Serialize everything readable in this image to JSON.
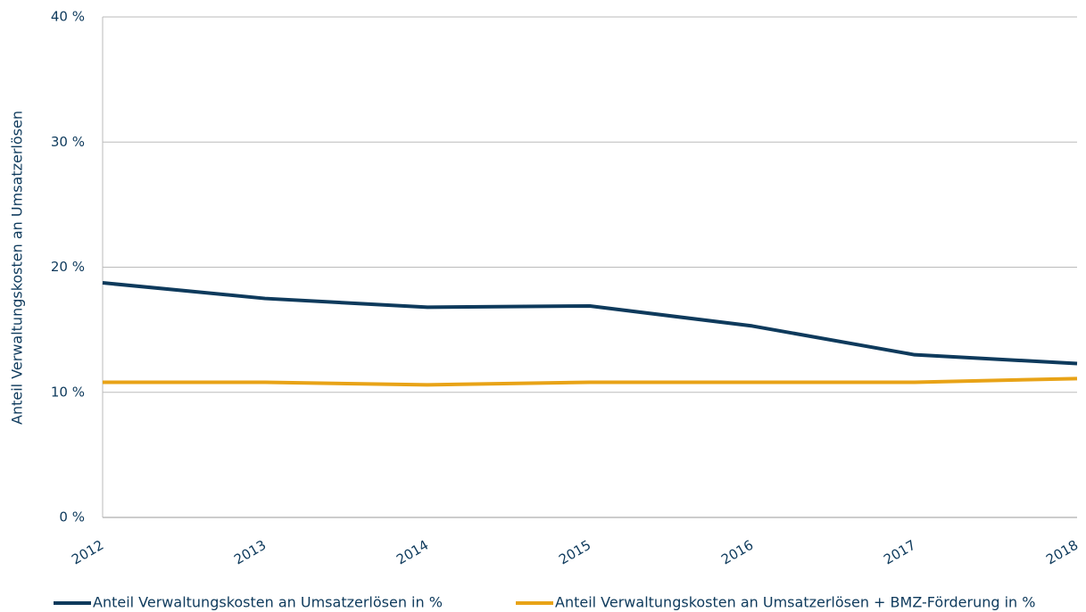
{
  "chart_data": {
    "type": "line",
    "ylabel": "Anteil Verwaltungskosten an Umsatzerlösen",
    "categories": [
      "2012",
      "2013",
      "2014",
      "2015",
      "2016",
      "2017",
      "2018"
    ],
    "series": [
      {
        "name": "Anteil Verwaltungskosten an Umsatzerlösen in %",
        "color": "#0e3a5c",
        "values": [
          18.75,
          17.5,
          16.8,
          16.9,
          15.3,
          13.0,
          12.3
        ]
      },
      {
        "name": "Anteil Verwaltungskosten an Umsatzerlösen + BMZ-Förderung in %",
        "color": "#e8a317",
        "values": [
          10.8,
          10.8,
          10.6,
          10.8,
          10.8,
          10.8,
          11.1
        ]
      }
    ],
    "ylim": [
      0,
      40
    ],
    "yticks": [
      {
        "value": 0,
        "label": "0 %"
      },
      {
        "value": 10,
        "label": "10 %"
      },
      {
        "value": 20,
        "label": "20 %"
      },
      {
        "value": 30,
        "label": "30 %"
      },
      {
        "value": 40,
        "label": "40 %"
      }
    ],
    "grid": true,
    "legend": "bottom"
  }
}
